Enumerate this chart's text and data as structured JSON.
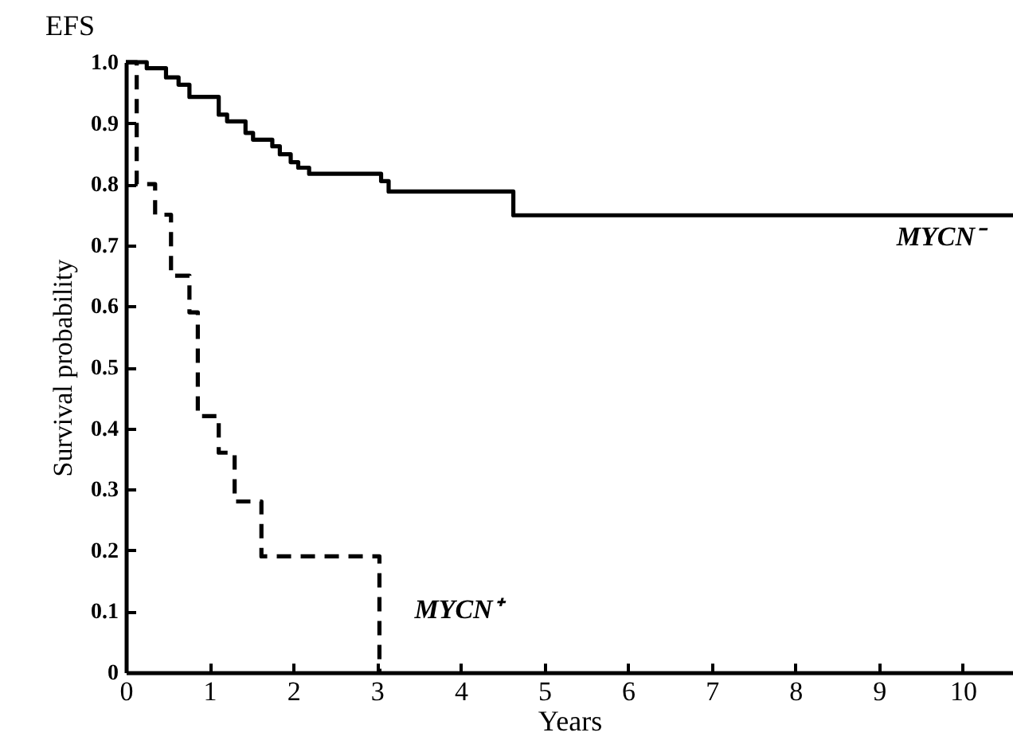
{
  "chart_data": {
    "type": "step",
    "title": "EFS",
    "xlabel": "Years",
    "ylabel": "Survival probability",
    "xlim": [
      0,
      10.6
    ],
    "xticks": [
      0,
      1,
      2,
      3,
      4,
      5,
      6,
      7,
      8,
      9,
      10
    ],
    "ylim": [
      0,
      1
    ],
    "yticks": [
      0,
      0.1,
      0.2,
      0.3,
      0.4,
      0.5,
      0.6,
      0.7,
      0.8,
      0.9,
      {
        "value": 1,
        "label": "1.0"
      }
    ],
    "grid": false,
    "marker": "none",
    "series": [
      {
        "name": "MYCN⁺",
        "color": "#000000",
        "line_style": "dashed",
        "x": [
          0,
          0.13,
          0.35,
          0.54,
          0.76,
          0.86,
          1.11,
          1.3,
          1.62,
          3.03
        ],
        "values": [
          1,
          0.8,
          0.75,
          0.65,
          0.59,
          0.42,
          0.36,
          0.28,
          0.19,
          0
        ]
      },
      {
        "name": "MYCN⁻",
        "color": "#000000",
        "line_style": "solid",
        "x": [
          0,
          0.25,
          0.48,
          0.63,
          0.76,
          1.11,
          1.21,
          1.43,
          1.52,
          1.75,
          1.84,
          1.97,
          2.06,
          2.19,
          3.05,
          3.14,
          4.63,
          10.6
        ],
        "values": [
          1,
          0.99,
          0.975,
          0.963,
          0.943,
          0.914,
          0.903,
          0.884,
          0.873,
          0.862,
          0.849,
          0.836,
          0.827,
          0.817,
          0.805,
          0.788,
          0.749,
          0.749
        ]
      }
    ]
  }
}
